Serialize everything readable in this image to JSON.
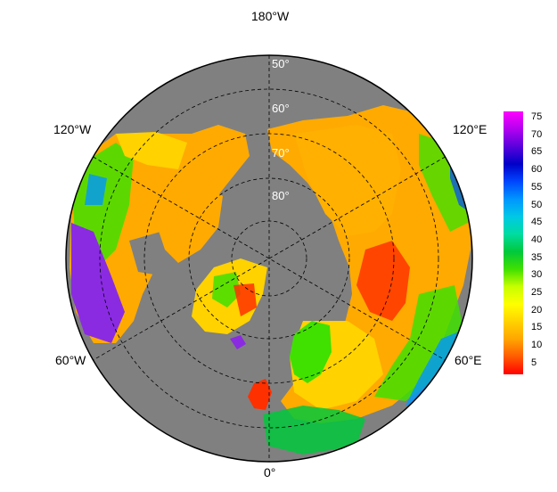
{
  "map": {
    "projection": "north polar stereographic",
    "ocean_color": "#808080",
    "gridline_color": "#000000",
    "longitude_labels": {
      "top": "180°W",
      "upper_left": "120°W",
      "upper_right": "120°E",
      "lower_left": "60°W",
      "lower_right": "60°E",
      "bottom": "0°"
    },
    "latitude_labels": [
      "50°",
      "60°",
      "70°",
      "80°"
    ]
  },
  "colorbar": {
    "ticks": [
      "75",
      "70",
      "65",
      "60",
      "55",
      "50",
      "45",
      "40",
      "35",
      "30",
      "25",
      "20",
      "15",
      "10",
      "5"
    ],
    "colors": [
      "#ff0000",
      "#ff5a00",
      "#ffa500",
      "#ffd200",
      "#ffff00",
      "#c8ff00",
      "#40e000",
      "#00c83c",
      "#00dca0",
      "#00c8e6",
      "#0096ff",
      "#0046ff",
      "#0000c8",
      "#5a00dc",
      "#b400f0",
      "#ff00ff"
    ]
  }
}
